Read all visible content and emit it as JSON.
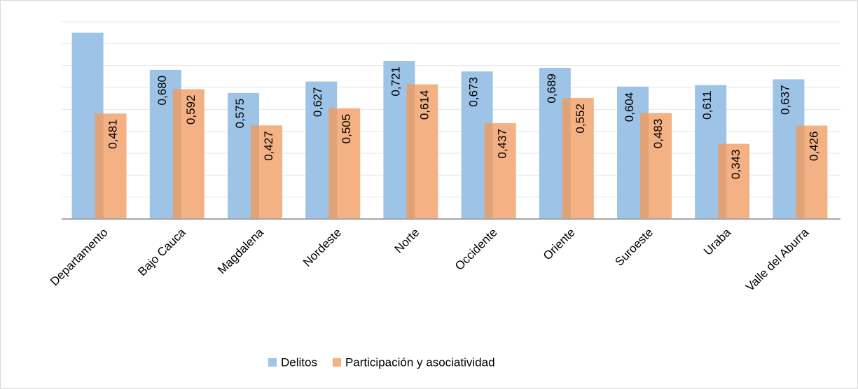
{
  "chart_data": {
    "type": "bar",
    "categories": [
      "Departamento",
      "Bajo Cauca",
      "Magdalena",
      "Nordeste",
      "Norte",
      "Occidente",
      "Oriente",
      "Suroeste",
      "Uraba",
      "Valle del Aburra"
    ],
    "series": [
      {
        "name": "Delitos",
        "color": "#9dc3e6",
        "values": [
          0.85,
          0.68,
          0.575,
          0.627,
          0.721,
          0.673,
          0.689,
          0.604,
          0.611,
          0.637
        ],
        "value_labels": [
          null,
          "0,680",
          "0,575",
          "0,627",
          "0,721",
          "0,673",
          "0,689",
          "0,604",
          "0,611",
          "0,637"
        ]
      },
      {
        "name": "Participación y asociatividad",
        "color": "#f4b183",
        "values": [
          0.481,
          0.592,
          0.427,
          0.505,
          0.614,
          0.437,
          0.552,
          0.483,
          0.343,
          0.426
        ],
        "value_labels": [
          "0,481",
          "0,592",
          "0,427",
          "0,505",
          "0,614",
          "0,437",
          "0,552",
          "0,483",
          "0,343",
          "0,426"
        ]
      }
    ],
    "ylim": [
      0,
      0.9
    ],
    "yticks": [
      0,
      0.1,
      0.2,
      0.3,
      0.4,
      0.5,
      0.6,
      0.7,
      0.8,
      0.9
    ],
    "grid": true,
    "tick_labels": false,
    "legend": "bottom"
  }
}
